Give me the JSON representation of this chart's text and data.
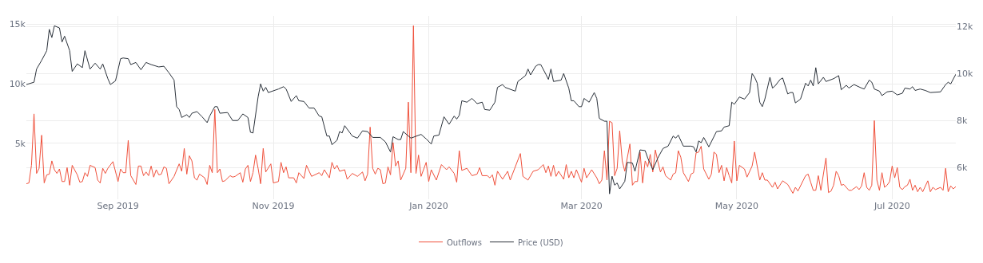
{
  "chart_data": {
    "type": "line",
    "xlim": [
      "2019-07-27",
      "2020-07-26"
    ],
    "xticks": [
      {
        "value": "2019-09-01",
        "label": "Sep 2019"
      },
      {
        "value": "2019-11-01",
        "label": "Nov 2019"
      },
      {
        "value": "2020-01-01",
        "label": "Jan 2020"
      },
      {
        "value": "2020-03-01",
        "label": "Mar 2020"
      },
      {
        "value": "2020-05-01",
        "label": "May 2020"
      },
      {
        "value": "2020-07-01",
        "label": "Jul 2020"
      }
    ],
    "ylim": [
      300,
      15700
    ],
    "yticks": [
      {
        "value": 5000,
        "label": "5k"
      },
      {
        "value": 10000,
        "label": "10k"
      },
      {
        "value": 15000,
        "label": "15k"
      }
    ],
    "y2lim": [
      4650,
      12450
    ],
    "y2ticks": [
      {
        "value": 6000,
        "label": "6k"
      },
      {
        "value": 8000,
        "label": "8k"
      },
      {
        "value": 10000,
        "label": "10k"
      },
      {
        "value": 12000,
        "label": "12k"
      }
    ],
    "grid": true,
    "legend": "bottom",
    "marker": "none",
    "line_style": "solid",
    "series": [
      {
        "name": "Outflows",
        "color": "#f0513c",
        "x": [
          "2019-07-27",
          "2019-07-28",
          "2019-07-29",
          "2019-07-30",
          "2019-07-31",
          "2019-08-01",
          "2019-08-02",
          "2019-08-03",
          "2019-08-04",
          "2019-08-05",
          "2019-08-06",
          "2019-08-07",
          "2019-08-08",
          "2019-08-09",
          "2019-08-10",
          "2019-08-11",
          "2019-08-12",
          "2019-08-13",
          "2019-08-14",
          "2019-08-16",
          "2019-08-17",
          "2019-08-18",
          "2019-08-19",
          "2019-08-20",
          "2019-08-21",
          "2019-08-23",
          "2019-08-24",
          "2019-08-25",
          "2019-08-26",
          "2019-08-27",
          "2019-08-28",
          "2019-08-30",
          "2019-09-01",
          "2019-09-02",
          "2019-09-03",
          "2019-09-04",
          "2019-09-05",
          "2019-09-06",
          "2019-09-08",
          "2019-09-09",
          "2019-09-10",
          "2019-09-11",
          "2019-09-12",
          "2019-09-13",
          "2019-09-14",
          "2019-09-15",
          "2019-09-16",
          "2019-09-17",
          "2019-09-18",
          "2019-09-19",
          "2019-09-20",
          "2019-09-21",
          "2019-09-23",
          "2019-09-25",
          "2019-09-26",
          "2019-09-27",
          "2019-09-28",
          "2019-09-29",
          "2019-09-30",
          "2019-10-01",
          "2019-10-02",
          "2019-10-03",
          "2019-10-05",
          "2019-10-06",
          "2019-10-07",
          "2019-10-08",
          "2019-10-09",
          "2019-10-10",
          "2019-10-11",
          "2019-10-12",
          "2019-10-13",
          "2019-10-15",
          "2019-10-16",
          "2019-10-17",
          "2019-10-19",
          "2019-10-20",
          "2019-10-21",
          "2019-10-22",
          "2019-10-23",
          "2019-10-24",
          "2019-10-25",
          "2019-10-26",
          "2019-10-27",
          "2019-10-28",
          "2019-10-29",
          "2019-10-31",
          "2019-11-01",
          "2019-11-03",
          "2019-11-04",
          "2019-11-05",
          "2019-11-06",
          "2019-11-07",
          "2019-11-09",
          "2019-11-10",
          "2019-11-11",
          "2019-11-13",
          "2019-11-14",
          "2019-11-16",
          "2019-11-19",
          "2019-11-20",
          "2019-11-21",
          "2019-11-23",
          "2019-11-24",
          "2019-11-25",
          "2019-11-26",
          "2019-11-27",
          "2019-11-29",
          "2019-11-30",
          "2019-12-02",
          "2019-12-04",
          "2019-12-06",
          "2019-12-07",
          "2019-12-08",
          "2019-12-09",
          "2019-12-10",
          "2019-12-11",
          "2019-12-12",
          "2019-12-13",
          "2019-12-14",
          "2019-12-15",
          "2019-12-16",
          "2019-12-17",
          "2019-12-18",
          "2019-12-19",
          "2019-12-20",
          "2019-12-21",
          "2019-12-23",
          "2019-12-24",
          "2019-12-25",
          "2019-12-26",
          "2019-12-27",
          "2019-12-28",
          "2019-12-29",
          "2019-12-31",
          "2020-01-01",
          "2020-01-02",
          "2020-01-04",
          "2020-01-06",
          "2020-01-08",
          "2020-01-09",
          "2020-01-11",
          "2020-01-12",
          "2020-01-13",
          "2020-01-14",
          "2020-01-16",
          "2020-01-18",
          "2020-01-20",
          "2020-01-21",
          "2020-01-22",
          "2020-01-24",
          "2020-01-25",
          "2020-01-26",
          "2020-01-27",
          "2020-01-28",
          "2020-01-30",
          "2020-02-01",
          "2020-02-02",
          "2020-02-06",
          "2020-02-07",
          "2020-02-09",
          "2020-02-11",
          "2020-02-13",
          "2020-02-15",
          "2020-02-16",
          "2020-02-17",
          "2020-02-18",
          "2020-02-19",
          "2020-02-20",
          "2020-02-21",
          "2020-02-23",
          "2020-02-24",
          "2020-02-25",
          "2020-02-26",
          "2020-02-27",
          "2020-02-28",
          "2020-03-01",
          "2020-03-02",
          "2020-03-03",
          "2020-03-05",
          "2020-03-07",
          "2020-03-08",
          "2020-03-09",
          "2020-03-10",
          "2020-03-11",
          "2020-03-12",
          "2020-03-13",
          "2020-03-14",
          "2020-03-15",
          "2020-03-16",
          "2020-03-17",
          "2020-03-18",
          "2020-03-20",
          "2020-03-21",
          "2020-03-22",
          "2020-03-23",
          "2020-03-24",
          "2020-03-25",
          "2020-03-26",
          "2020-03-27",
          "2020-03-28",
          "2020-03-29",
          "2020-03-30",
          "2020-03-31",
          "2020-04-01",
          "2020-04-02",
          "2020-04-03",
          "2020-04-05",
          "2020-04-06",
          "2020-04-07",
          "2020-04-08",
          "2020-04-09",
          "2020-04-10",
          "2020-04-12",
          "2020-04-13",
          "2020-04-14",
          "2020-04-15",
          "2020-04-16",
          "2020-04-17",
          "2020-04-18",
          "2020-04-20",
          "2020-04-21",
          "2020-04-22",
          "2020-04-23",
          "2020-04-24",
          "2020-04-25",
          "2020-04-26",
          "2020-04-27",
          "2020-04-28",
          "2020-04-29",
          "2020-04-30",
          "2020-05-01",
          "2020-05-02",
          "2020-05-04",
          "2020-05-05",
          "2020-05-07",
          "2020-05-08",
          "2020-05-10",
          "2020-05-11",
          "2020-05-12",
          "2020-05-13",
          "2020-05-15",
          "2020-05-16",
          "2020-05-17",
          "2020-05-19",
          "2020-05-21",
          "2020-05-22",
          "2020-05-23",
          "2020-05-24",
          "2020-05-25",
          "2020-05-27",
          "2020-05-28",
          "2020-05-29",
          "2020-05-30",
          "2020-05-31",
          "2020-06-01",
          "2020-06-02",
          "2020-06-03",
          "2020-06-05",
          "2020-06-06",
          "2020-06-07",
          "2020-06-08",
          "2020-06-09",
          "2020-06-10",
          "2020-06-11",
          "2020-06-12",
          "2020-06-14",
          "2020-06-15",
          "2020-06-17",
          "2020-06-18",
          "2020-06-19",
          "2020-06-20",
          "2020-06-21",
          "2020-06-22",
          "2020-06-23",
          "2020-06-24",
          "2020-06-25",
          "2020-06-26",
          "2020-06-27",
          "2020-06-28",
          "2020-06-29",
          "2020-06-30",
          "2020-07-01",
          "2020-07-02",
          "2020-07-03",
          "2020-07-04",
          "2020-07-05",
          "2020-07-06",
          "2020-07-07",
          "2020-07-08",
          "2020-07-09",
          "2020-07-10",
          "2020-07-11",
          "2020-07-12",
          "2020-07-13",
          "2020-07-15",
          "2020-07-16",
          "2020-07-17",
          "2020-07-18",
          "2020-07-20",
          "2020-07-21",
          "2020-07-22",
          "2020-07-23",
          "2020-07-24",
          "2020-07-25",
          "2020-07-26"
        ],
        "values": [
          1600,
          1670,
          3150,
          7470,
          2470,
          2900,
          5680,
          1670,
          2350,
          2410,
          3520,
          2780,
          2470,
          2840,
          1790,
          1790,
          2960,
          1480,
          3150,
          2350,
          1730,
          1790,
          2530,
          2220,
          3150,
          2960,
          1910,
          1670,
          2900,
          2470,
          2900,
          3460,
          1790,
          2840,
          2530,
          2530,
          5250,
          2280,
          1540,
          3090,
          3090,
          2280,
          2590,
          2280,
          3090,
          2160,
          2780,
          2350,
          2410,
          3020,
          2900,
          1600,
          2220,
          3270,
          2650,
          4570,
          2410,
          3950,
          3520,
          2100,
          1910,
          2410,
          2100,
          1540,
          3150,
          2530,
          7840,
          2530,
          2840,
          1790,
          1850,
          2280,
          2160,
          2220,
          2530,
          1730,
          2840,
          3150,
          1790,
          2530,
          4010,
          2900,
          1600,
          4570,
          2590,
          3270,
          1670,
          1790,
          3400,
          2530,
          3020,
          2100,
          2100,
          1670,
          2530,
          2040,
          3150,
          2220,
          2530,
          2280,
          2780,
          2100,
          3400,
          2840,
          3150,
          2650,
          2780,
          1980,
          2470,
          2220,
          2590,
          1850,
          2410,
          6360,
          2900,
          2410,
          2900,
          2780,
          1600,
          1670,
          3020,
          2350,
          5060,
          3090,
          3520,
          1910,
          2900,
          8460,
          2530,
          14880,
          2470,
          4010,
          2220,
          3400,
          1790,
          2780,
          1910,
          3210,
          2780,
          3020,
          2470,
          1730,
          4380,
          2720,
          2900,
          2280,
          2410,
          2960,
          2280,
          2280,
          2100,
          2350,
          1480,
          2650,
          1980,
          2650,
          1910,
          4140,
          2220,
          1910,
          2650,
          2780,
          3210,
          2530,
          3090,
          2220,
          3150,
          2220,
          2650,
          1980,
          3210,
          2100,
          2650,
          2100,
          2780,
          1730,
          2900,
          2100,
          2780,
          2100,
          1600,
          1910,
          4380,
          1910,
          6850,
          6730,
          2280,
          2900,
          6050,
          3520,
          2650,
          4940,
          1480,
          1790,
          1790,
          4260,
          1670,
          3520,
          3020,
          4070,
          2590,
          4440,
          3460,
          2590,
          3020,
          2280,
          1910,
          2410,
          2530,
          4380,
          3830,
          2530,
          1790,
          2410,
          2530,
          4200,
          4260,
          4750,
          2840,
          1980,
          2410,
          4260,
          4070,
          2530,
          3150,
          1850,
          2960,
          2280,
          1670,
          5190,
          1850,
          3150,
          2840,
          2160,
          3090,
          4260,
          1910,
          2530,
          1910,
          1910,
          1300,
          1730,
          1170,
          1850,
          1540,
          1170,
          800,
          1300,
          990,
          1850,
          2280,
          2410,
          1730,
          1050,
          1050,
          2280,
          1050,
          3770,
          860,
          990,
          1480,
          2650,
          2280,
          1480,
          1540,
          1050,
          1050,
          1360,
          1110,
          1420,
          2530,
          1300,
          1050,
          1480,
          6910,
          1910,
          1050,
          2530,
          1300,
          1480,
          1790,
          3090,
          2100,
          2960,
          1300,
          1110,
          1360,
          1480,
          1980,
          1050,
          1480,
          930,
          1300,
          930,
          1850,
          930,
          1300,
          1110,
          1300,
          1050,
          2900,
          930,
          1420,
          1170,
          1360
        ]
      },
      {
        "name": "Price (USD)",
        "color": "#2a313a",
        "axis": "y2",
        "x": [
          "2019-07-27",
          "2019-07-30",
          "2019-07-31",
          "2019-08-02",
          "2019-08-04",
          "2019-08-05",
          "2019-08-06",
          "2019-08-07",
          "2019-08-09",
          "2019-08-10",
          "2019-08-11",
          "2019-08-13",
          "2019-08-14",
          "2019-08-16",
          "2019-08-18",
          "2019-08-19",
          "2019-08-21",
          "2019-08-23",
          "2019-08-25",
          "2019-08-26",
          "2019-08-28",
          "2019-08-29",
          "2019-08-31",
          "2019-09-02",
          "2019-09-03",
          "2019-09-05",
          "2019-09-06",
          "2019-09-08",
          "2019-09-10",
          "2019-09-12",
          "2019-09-14",
          "2019-09-17",
          "2019-09-19",
          "2019-09-21",
          "2019-09-23",
          "2019-09-24",
          "2019-09-25",
          "2019-09-26",
          "2019-09-28",
          "2019-09-29",
          "2019-09-30",
          "2019-10-02",
          "2019-10-04",
          "2019-10-06",
          "2019-10-07",
          "2019-10-09",
          "2019-10-10",
          "2019-10-11",
          "2019-10-14",
          "2019-10-16",
          "2019-10-18",
          "2019-10-20",
          "2019-10-22",
          "2019-10-23",
          "2019-10-24",
          "2019-10-26",
          "2019-10-27",
          "2019-10-28",
          "2019-10-29",
          "2019-10-30",
          "2019-11-03",
          "2019-11-05",
          "2019-11-06",
          "2019-11-08",
          "2019-11-10",
          "2019-11-11",
          "2019-11-13",
          "2019-11-15",
          "2019-11-17",
          "2019-11-19",
          "2019-11-20",
          "2019-11-22",
          "2019-11-23",
          "2019-11-24",
          "2019-11-26",
          "2019-11-27",
          "2019-11-28",
          "2019-11-29",
          "2019-12-02",
          "2019-12-04",
          "2019-12-06",
          "2019-12-08",
          "2019-12-10",
          "2019-12-13",
          "2019-12-15",
          "2019-12-17",
          "2019-12-18",
          "2019-12-20",
          "2019-12-21",
          "2019-12-22",
          "2019-12-25",
          "2019-12-29",
          "2019-12-31",
          "2020-01-02",
          "2020-01-03",
          "2020-01-05",
          "2020-01-07",
          "2020-01-09",
          "2020-01-11",
          "2020-01-12",
          "2020-01-13",
          "2020-01-14",
          "2020-01-16",
          "2020-01-18",
          "2020-01-20",
          "2020-01-22",
          "2020-01-23",
          "2020-01-25",
          "2020-01-27",
          "2020-01-28",
          "2020-01-30",
          "2020-01-31",
          "2020-02-04",
          "2020-02-05",
          "2020-02-08",
          "2020-02-09",
          "2020-02-10",
          "2020-02-12",
          "2020-02-13",
          "2020-02-14",
          "2020-02-16",
          "2020-02-17",
          "2020-02-18",
          "2020-02-19",
          "2020-02-22",
          "2020-02-23",
          "2020-02-25",
          "2020-02-26",
          "2020-02-27",
          "2020-02-29",
          "2020-03-01",
          "2020-03-02",
          "2020-03-04",
          "2020-03-06",
          "2020-03-07",
          "2020-03-08",
          "2020-03-10",
          "2020-03-11",
          "2020-03-12",
          "2020-03-13",
          "2020-03-14",
          "2020-03-15",
          "2020-03-16",
          "2020-03-18",
          "2020-03-19",
          "2020-03-21",
          "2020-03-22",
          "2020-03-24",
          "2020-03-26",
          "2020-03-27",
          "2020-03-29",
          "2020-03-31",
          "2020-04-02",
          "2020-04-04",
          "2020-04-06",
          "2020-04-07",
          "2020-04-08",
          "2020-04-10",
          "2020-04-13",
          "2020-04-14",
          "2020-04-15",
          "2020-04-16",
          "2020-04-17",
          "2020-04-18",
          "2020-04-20",
          "2020-04-23",
          "2020-04-25",
          "2020-04-26",
          "2020-04-28",
          "2020-04-29",
          "2020-04-30",
          "2020-05-02",
          "2020-05-04",
          "2020-05-06",
          "2020-05-07",
          "2020-05-08",
          "2020-05-09",
          "2020-05-10",
          "2020-05-11",
          "2020-05-12",
          "2020-05-14",
          "2020-05-15",
          "2020-05-16",
          "2020-05-18",
          "2020-05-19",
          "2020-05-21",
          "2020-05-22",
          "2020-05-23",
          "2020-05-24",
          "2020-05-26",
          "2020-05-28",
          "2020-05-29",
          "2020-05-30",
          "2020-05-31",
          "2020-06-01",
          "2020-06-02",
          "2020-06-04",
          "2020-06-05",
          "2020-06-08",
          "2020-06-10",
          "2020-06-11",
          "2020-06-13",
          "2020-06-14",
          "2020-06-16",
          "2020-06-19",
          "2020-06-20",
          "2020-06-22",
          "2020-06-23",
          "2020-06-24",
          "2020-06-26",
          "2020-06-27",
          "2020-06-29",
          "2020-07-01",
          "2020-07-03",
          "2020-07-05",
          "2020-07-06",
          "2020-07-08",
          "2020-07-09",
          "2020-07-10",
          "2020-07-12",
          "2020-07-14",
          "2020-07-16",
          "2020-07-20",
          "2020-07-22",
          "2020-07-23",
          "2020-07-24",
          "2020-07-26"
        ],
        "values": [
          9530,
          9630,
          10190,
          10560,
          10970,
          11880,
          11530,
          12030,
          11940,
          11340,
          11590,
          10970,
          10090,
          10410,
          10250,
          10970,
          10190,
          10440,
          10190,
          10410,
          9780,
          9530,
          9690,
          10630,
          10660,
          10630,
          10380,
          10470,
          10160,
          10470,
          10380,
          10280,
          10310,
          10030,
          9720,
          8590,
          8470,
          8130,
          8250,
          8130,
          8310,
          8380,
          8160,
          7910,
          8190,
          8590,
          8590,
          8310,
          8340,
          8000,
          8000,
          8280,
          8130,
          7500,
          7470,
          9000,
          9560,
          9250,
          9410,
          9190,
          9340,
          9440,
          9340,
          8810,
          9060,
          8840,
          8810,
          8530,
          8530,
          8190,
          8160,
          7340,
          7340,
          6970,
          7160,
          7530,
          7470,
          7780,
          7340,
          7250,
          7560,
          7530,
          7280,
          7280,
          7090,
          6660,
          7310,
          7190,
          7190,
          7530,
          7250,
          7410,
          7220,
          7000,
          7340,
          7380,
          8160,
          7840,
          8190,
          8060,
          8220,
          8840,
          8780,
          8940,
          8720,
          8780,
          8470,
          8440,
          8780,
          9410,
          9530,
          9410,
          9250,
          9660,
          9910,
          10190,
          9940,
          10310,
          10380,
          10380,
          9970,
          9750,
          10190,
          9660,
          9720,
          10000,
          9380,
          8840,
          8840,
          8590,
          8590,
          8940,
          8780,
          9190,
          8940,
          8090,
          7970,
          7970,
          4880,
          5630,
          5250,
          5340,
          5090,
          5410,
          6220,
          6190,
          5840,
          6750,
          6720,
          6410,
          5910,
          6410,
          6810,
          6910,
          7340,
          7250,
          7380,
          6910,
          6910,
          6880,
          6660,
          7130,
          7060,
          7280,
          6880,
          7530,
          7560,
          7720,
          7780,
          8780,
          8690,
          9000,
          8910,
          9190,
          10000,
          9840,
          9590,
          8780,
          8590,
          8910,
          9840,
          9380,
          9470,
          9750,
          9810,
          9130,
          9190,
          9190,
          8750,
          8910,
          9590,
          9470,
          9720,
          9470,
          10250,
          9560,
          9840,
          9660,
          9780,
          9910,
          9310,
          9500,
          9380,
          9530,
          9380,
          9340,
          9720,
          9630,
          9340,
          9250,
          9060,
          9220,
          9250,
          9090,
          9160,
          9380,
          9340,
          9440,
          9280,
          9340,
          9280,
          9190,
          9220,
          9530,
          9630,
          9560,
          9970
        ]
      }
    ]
  }
}
